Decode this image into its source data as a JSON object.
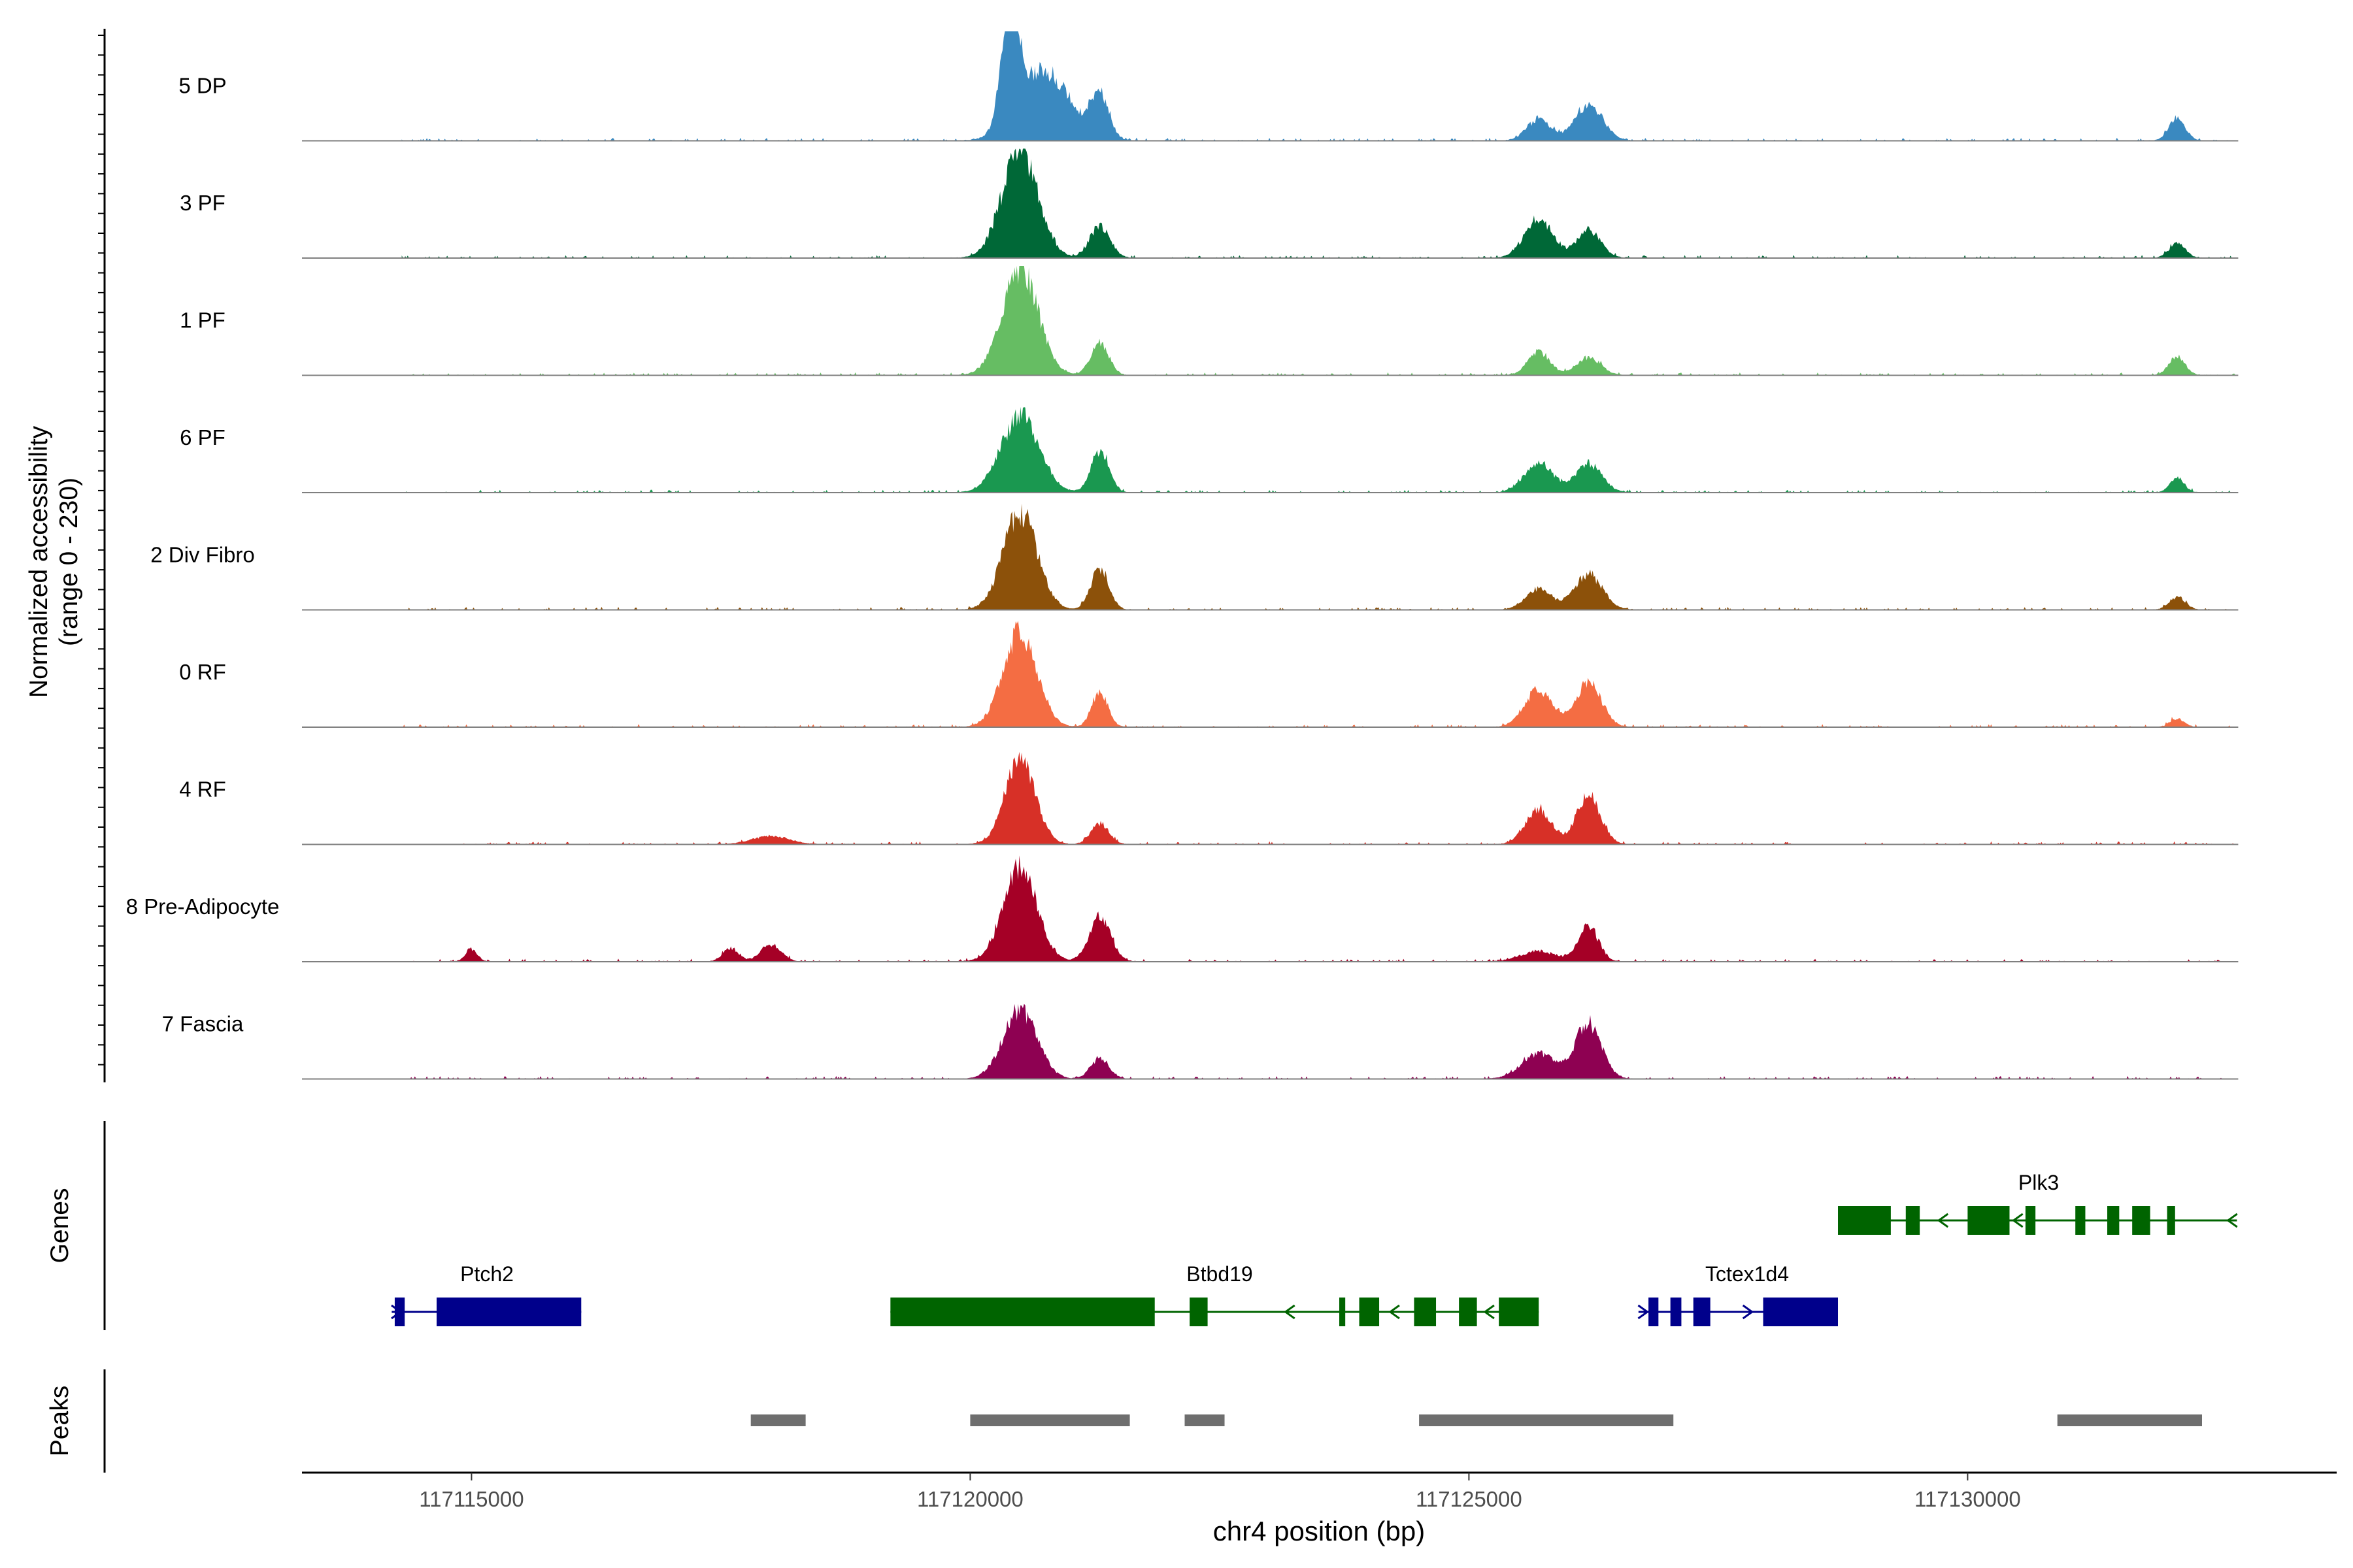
{
  "chart_data": {
    "type": "area",
    "title": "",
    "xlabel": "chr4 position (bp)",
    "ylabel_line1": "Normalized accessibility",
    "ylabel_line2": "(range 0 - 230)",
    "xlim": [
      117113300,
      117133700
    ],
    "x_ticks": [
      117115000,
      117120000,
      117125000,
      117130000
    ],
    "x_tick_labels": [
      "117115000",
      "117120000",
      "117125000",
      "117130000"
    ],
    "panel_labels": {
      "genes": "Genes",
      "peaks": "Peaks"
    },
    "tracks": [
      {
        "name": "5 DP",
        "color": "#3A89C0",
        "peaks": [
          [
            117120400,
            230,
            90
          ],
          [
            117120750,
            150,
            250
          ],
          [
            117121300,
            95,
            90
          ],
          [
            117125700,
            45,
            120
          ],
          [
            117126200,
            75,
            140
          ],
          [
            117132100,
            50,
            80
          ]
        ]
      },
      {
        "name": "3 PF",
        "color": "#006837",
        "peaks": [
          [
            117120500,
            230,
            180
          ],
          [
            117121300,
            70,
            100
          ],
          [
            117125700,
            85,
            140
          ],
          [
            117126200,
            60,
            120
          ],
          [
            117132100,
            32,
            80
          ]
        ]
      },
      {
        "name": "1 PF",
        "color": "#66BD63",
        "peaks": [
          [
            117120500,
            230,
            180
          ],
          [
            117121300,
            68,
            90
          ],
          [
            117125700,
            50,
            110
          ],
          [
            117126200,
            38,
            120
          ],
          [
            117132100,
            40,
            80
          ]
        ]
      },
      {
        "name": "6 PF",
        "color": "#1A9850",
        "peaks": [
          [
            117120500,
            165,
            190
          ],
          [
            117121300,
            90,
            90
          ],
          [
            117125700,
            65,
            140
          ],
          [
            117126200,
            62,
            130
          ],
          [
            117132100,
            32,
            70
          ]
        ]
      },
      {
        "name": "2 Div Fibro",
        "color": "#8C510A",
        "peaks": [
          [
            117120500,
            210,
            170
          ],
          [
            117121300,
            90,
            90
          ],
          [
            117125700,
            45,
            130
          ],
          [
            117126200,
            75,
            140
          ],
          [
            117132100,
            28,
            80
          ]
        ]
      },
      {
        "name": "0 RF",
        "color": "#F46D43",
        "peaks": [
          [
            117120500,
            205,
            170
          ],
          [
            117121300,
            75,
            80
          ],
          [
            117125700,
            80,
            140
          ],
          [
            117126200,
            95,
            130
          ],
          [
            117132100,
            18,
            70
          ]
        ]
      },
      {
        "name": "4 RF",
        "color": "#D73027",
        "peaks": [
          [
            117120500,
            185,
            150
          ],
          [
            117121300,
            45,
            90
          ],
          [
            117125700,
            75,
            130
          ],
          [
            117126200,
            105,
            120
          ],
          [
            117118000,
            18,
            180
          ]
        ]
      },
      {
        "name": "8 Pre-Adipocyte",
        "color": "#A50026",
        "peaks": [
          [
            117120500,
            200,
            170
          ],
          [
            117121300,
            95,
            110
          ],
          [
            117126200,
            75,
            100
          ],
          [
            117125700,
            22,
            180
          ],
          [
            117118000,
            38,
            100
          ],
          [
            117117600,
            28,
            80
          ],
          [
            117115000,
            25,
            60
          ]
        ]
      },
      {
        "name": "7 Fascia",
        "color": "#8E0152",
        "peaks": [
          [
            117120500,
            150,
            170
          ],
          [
            117121300,
            45,
            90
          ],
          [
            117125700,
            55,
            170
          ],
          [
            117126200,
            120,
            130
          ]
        ]
      }
    ],
    "genes": [
      {
        "name": "Ptch2",
        "strand": "+",
        "row": 2,
        "color": "#00008B",
        "start": 117114200,
        "end": 117116100,
        "exons": [
          [
            117114230,
            117114330
          ],
          [
            117114650,
            117116100
          ]
        ],
        "arrows": [
          117114250
        ]
      },
      {
        "name": "Btbd19",
        "strand": "-",
        "row": 2,
        "color": "#006400",
        "start": 117119200,
        "end": 117125700,
        "exons": [
          [
            117119200,
            117121850
          ],
          [
            117122200,
            117122380
          ],
          [
            117123700,
            117123760
          ],
          [
            117123900,
            117124100
          ],
          [
            117124450,
            117124670
          ],
          [
            117124900,
            117125080
          ],
          [
            117125300,
            117125700
          ]
        ],
        "arrows": [
          117123200,
          117124250,
          117125200
        ]
      },
      {
        "name": "Tctex1d4",
        "strand": "+",
        "row": 2,
        "color": "#00008B",
        "start": 117126700,
        "end": 117128700,
        "exons": [
          [
            117126800,
            117126900
          ],
          [
            117127020,
            117127130
          ],
          [
            117127250,
            117127420
          ],
          [
            117127950,
            117128700
          ]
        ],
        "arrows": [
          117126750,
          117127800
        ]
      },
      {
        "name": "Plk3",
        "strand": "-",
        "row": 1,
        "color": "#006400",
        "start": 117128700,
        "end": 117132700,
        "exons": [
          [
            117128700,
            117129230
          ],
          [
            117129380,
            117129520
          ],
          [
            117130000,
            117130420
          ],
          [
            117130580,
            117130680
          ],
          [
            117131080,
            117131180
          ],
          [
            117131400,
            117131520
          ],
          [
            117131650,
            117131830
          ],
          [
            117132000,
            117132080
          ]
        ],
        "arrows": [
          117129750,
          117130500,
          117132650
        ]
      }
    ],
    "peaks": [
      [
        117117800,
        117118350
      ],
      [
        117120000,
        117121600
      ],
      [
        117122150,
        117122550
      ],
      [
        117124500,
        117127050
      ],
      [
        117130900,
        117132350
      ]
    ]
  }
}
